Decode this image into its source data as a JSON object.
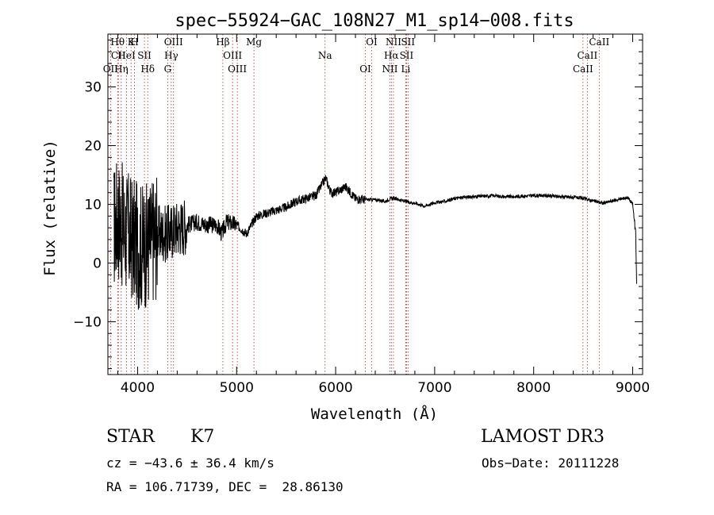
{
  "chart_data": {
    "type": "line",
    "title": "spec−55924−GAC_108N27_M1_sp14−008.fits",
    "xlabel": "Wavelength (Å)",
    "ylabel": "Flux (relative)",
    "xlim": [
      3700,
      9100
    ],
    "ylim": [
      -19,
      39
    ],
    "xticks": [
      4000,
      5000,
      6000,
      7000,
      8000,
      9000
    ],
    "yticks": [
      -10,
      0,
      10,
      20,
      30
    ],
    "ytick_labels": [
      "−10",
      "0",
      "10",
      "20",
      "30"
    ],
    "grid": false,
    "colors": {
      "spectrum": "#000000",
      "lines": "#b03030",
      "text": "#000000"
    },
    "series": [
      {
        "name": "flux",
        "x": [
          3760,
          3800,
          3850,
          3900,
          3950,
          4000,
          4050,
          4100,
          4150,
          4200,
          4250,
          4300,
          4350,
          4400,
          4500,
          4600,
          4700,
          4800,
          4850,
          4900,
          5000,
          5100,
          5200,
          5300,
          5400,
          5500,
          5600,
          5700,
          5800,
          5850,
          5900,
          5950,
          6000,
          6050,
          6100,
          6150,
          6200,
          6300,
          6400,
          6500,
          6563,
          6600,
          6700,
          6800,
          6900,
          7000,
          7100,
          7200,
          7300,
          7400,
          7500,
          7600,
          7700,
          7800,
          7900,
          8000,
          8100,
          8200,
          8300,
          8400,
          8500,
          8600,
          8700,
          8800,
          8900,
          8950,
          9000,
          9030,
          9040
        ],
        "y": [
          6,
          8,
          6,
          5,
          4,
          3,
          3,
          3,
          4,
          5,
          5,
          5,
          5.5,
          6,
          6.5,
          7,
          6.5,
          6.5,
          5,
          7,
          6.5,
          5,
          8,
          8.5,
          9,
          9.5,
          10.5,
          11,
          11.5,
          13,
          14.5,
          12,
          12,
          12.5,
          13,
          12,
          11,
          10.8,
          10.8,
          10.5,
          11,
          11,
          10.5,
          10.2,
          9.7,
          10.3,
          10.5,
          11,
          11.2,
          11.3,
          11.4,
          11.5,
          11.3,
          11.3,
          11.4,
          11.5,
          11.5,
          11.4,
          11.3,
          11.2,
          11,
          10.6,
          10.2,
          10.6,
          11,
          11.2,
          10,
          5,
          -4
        ]
      }
    ],
    "spectral_lines": [
      {
        "label": "Hθ",
        "x": 3798
      },
      {
        "label": "CII",
        "x": 3806
      },
      {
        "label": "OII",
        "x": 3727
      },
      {
        "label": "K",
        "x": 3934
      },
      {
        "label": "HeI",
        "x": 3889
      },
      {
        "label": "Hη",
        "x": 3835
      },
      {
        "label": "H",
        "x": 3969
      },
      {
        "label": "SII",
        "x": 4069
      },
      {
        "label": "Hδ",
        "x": 4102
      },
      {
        "label": "OIII",
        "x": 4363
      },
      {
        "label": "Hγ",
        "x": 4340
      },
      {
        "label": "G",
        "x": 4304
      },
      {
        "label": "Hβ",
        "x": 4861
      },
      {
        "label": "OIII",
        "x": 4959
      },
      {
        "label": "OIII",
        "x": 5007
      },
      {
        "label": "Mg",
        "x": 5175
      },
      {
        "label": "Na",
        "x": 5893
      },
      {
        "label": "OI",
        "x": 6300
      },
      {
        "label": "OI",
        "x": 6364
      },
      {
        "label": "Hα",
        "x": 6563
      },
      {
        "label": "NII",
        "x": 6548
      },
      {
        "label": "NII",
        "x": 6584
      },
      {
        "label": "SII",
        "x": 6716
      },
      {
        "label": "Li",
        "x": 6708
      },
      {
        "label": "SII",
        "x": 6731
      },
      {
        "label": "CaII",
        "x": 8542
      },
      {
        "label": "CaII",
        "x": 8498
      },
      {
        "label": "CaII",
        "x": 8662
      }
    ]
  },
  "info": {
    "object_class": "STAR",
    "subclass": "K7",
    "survey": "LAMOST DR3",
    "cz": "cz = −43.6 ± 36.4 km/s",
    "obs_date": "Obs−Date: 20111228",
    "coords": "RA = 106.71739, DEC =  28.86130"
  }
}
